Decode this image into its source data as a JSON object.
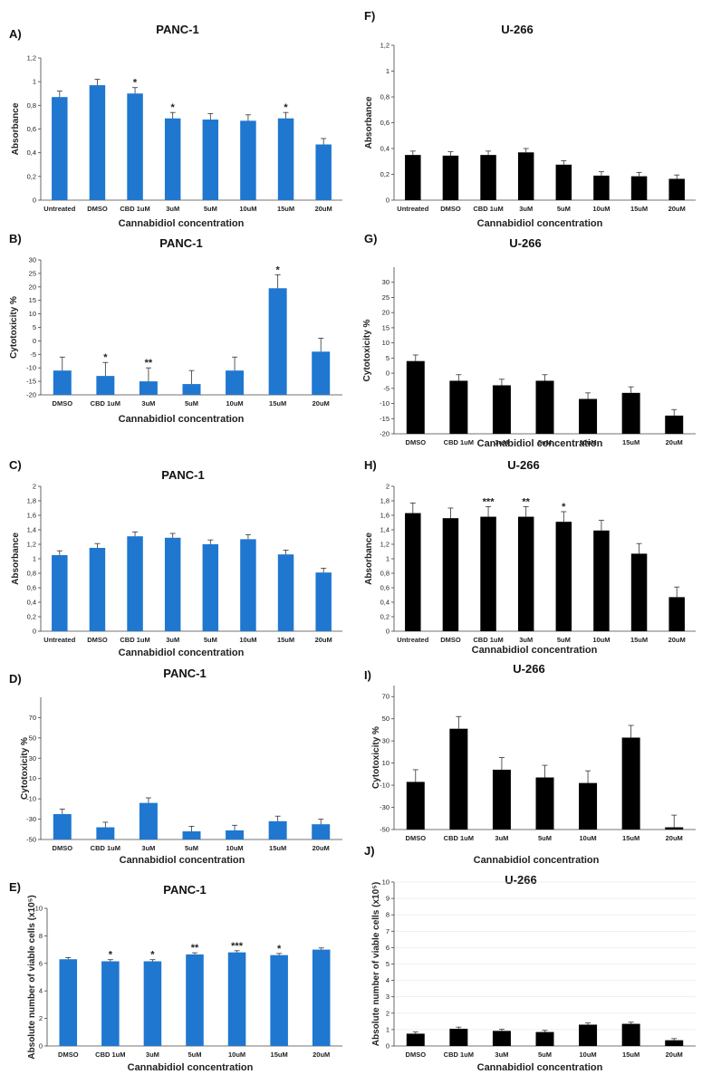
{
  "chart_data": [
    {
      "panel": "A)",
      "title": "PANC-1",
      "type": "bar",
      "color": "#1f77d0",
      "xlabel": "Cannabidiol  concentration",
      "ylabel": "Absorbance",
      "ylim": [
        0,
        1.2
      ],
      "yticks": [
        0,
        0.2,
        0.4,
        0.6,
        0.8,
        1,
        1.2
      ],
      "ytick_labels": [
        "0",
        "0,2",
        "0,4",
        "0,6",
        "0,8",
        "1",
        "1,2"
      ],
      "categories": [
        "Untreated",
        "DMSO",
        "CBD 1uM",
        "3uM",
        "5uM",
        "10uM",
        "15uM",
        "20uM"
      ],
      "values": [
        0.87,
        0.97,
        0.9,
        0.69,
        0.68,
        0.67,
        0.69,
        0.47
      ],
      "errors": [
        0.05,
        0.05,
        0.05,
        0.05,
        0.05,
        0.05,
        0.05,
        0.05
      ],
      "annotations": [
        "",
        "",
        "*",
        "*",
        "",
        "",
        "*",
        ""
      ]
    },
    {
      "panel": "B)",
      "title": "PANC-1",
      "type": "bar",
      "color": "#1f77d0",
      "xlabel": "Cannabidiol  concentration",
      "ylabel": "Cytotoxicity %",
      "ylim": [
        -20,
        30
      ],
      "yticks": [
        -20,
        -15,
        -10,
        -5,
        0,
        5,
        10,
        15,
        20,
        25,
        30
      ],
      "ytick_labels": [
        "-20",
        "-15",
        "-10",
        "-5",
        "0",
        "5",
        "10",
        "15",
        "20",
        "25",
        "30"
      ],
      "categories": [
        "DMSO",
        "CBD 1uM",
        "3uM",
        "5uM",
        "10uM",
        "15uM",
        "20uM"
      ],
      "values": [
        -11,
        -13,
        -15,
        -16,
        -11,
        19.5,
        -4
      ],
      "errors": [
        5,
        5,
        5,
        5,
        5,
        5,
        5
      ],
      "annotations": [
        "",
        "*",
        "**",
        "",
        "",
        "*",
        ""
      ]
    },
    {
      "panel": "C)",
      "title": "PANC-1",
      "type": "bar",
      "color": "#1f77d0",
      "xlabel": "Cannabidiol  concentration",
      "ylabel": "Absorbance",
      "ylim": [
        0,
        2
      ],
      "yticks": [
        0,
        0.2,
        0.4,
        0.6,
        0.8,
        1,
        1.2,
        1.4,
        1.6,
        1.8,
        2
      ],
      "ytick_labels": [
        "0",
        "0,2",
        "0,4",
        "0,6",
        "0,8",
        "1",
        "1,2",
        "1,4",
        "1,6",
        "1,8",
        "2"
      ],
      "categories": [
        "Untreated",
        "DMSO",
        "CBD 1uM",
        "3uM",
        "5uM",
        "10uM",
        "15uM",
        "20uM"
      ],
      "values": [
        1.05,
        1.15,
        1.31,
        1.29,
        1.2,
        1.27,
        1.06,
        0.81
      ],
      "errors": [
        0.06,
        0.06,
        0.06,
        0.06,
        0.06,
        0.06,
        0.06,
        0.06
      ],
      "annotations": [
        "",
        "",
        "",
        "",
        "",
        "",
        "",
        ""
      ]
    },
    {
      "panel": "D)",
      "title": "PANC-1",
      "type": "bar",
      "color": "#1f77d0",
      "xlabel": "Cannabidiol  concentration",
      "ylabel": "Cytotoxicity %",
      "ylim": [
        -50,
        90
      ],
      "yticks": [
        -50,
        -30,
        -10,
        10,
        30,
        50,
        70
      ],
      "ytick_labels": [
        "-50",
        "-30",
        "-10",
        "10",
        "30",
        "50",
        "70"
      ],
      "categories": [
        "DMSO",
        "CBD 1uM",
        "3uM",
        "5uM",
        "10uM",
        "15uM",
        "20uM"
      ],
      "values": [
        -25,
        -38,
        -14,
        -42,
        -41,
        -32,
        -35
      ],
      "errors": [
        5,
        5,
        5,
        5,
        5,
        5,
        5
      ],
      "annotations": [
        "",
        "",
        "",
        "",
        "",
        "",
        ""
      ]
    },
    {
      "panel": "E)",
      "title": "PANC-1",
      "type": "bar",
      "color": "#1f77d0",
      "xlabel": "Cannabidiol  concentration",
      "ylabel": "Absolute number of viable cells (x10⁵)",
      "ylim": [
        0,
        10
      ],
      "yticks": [
        0,
        2,
        4,
        6,
        8,
        10
      ],
      "ytick_labels": [
        "0",
        "2",
        "4",
        "6",
        "8",
        "10"
      ],
      "categories": [
        "DMSO",
        "CBD 1uM",
        "3uM",
        "5uM",
        "10uM",
        "15uM",
        "20uM"
      ],
      "values": [
        6.3,
        6.15,
        6.15,
        6.65,
        6.8,
        6.6,
        7.0
      ],
      "errors": [
        0.12,
        0.12,
        0.12,
        0.12,
        0.12,
        0.12,
        0.12
      ],
      "annotations": [
        "",
        "*",
        "*",
        "**",
        "***",
        "*",
        ""
      ]
    },
    {
      "panel": "F)",
      "title": "U-266",
      "type": "bar",
      "color": "#000000",
      "xlabel": "Cannabidiol  concentration",
      "ylabel": "Absorbance",
      "ylim": [
        0,
        1.2
      ],
      "yticks": [
        0,
        0.2,
        0.4,
        0.6,
        0.8,
        1,
        1.2
      ],
      "ytick_labels": [
        "0",
        "0,2",
        "0,4",
        "0,6",
        "0,8",
        "1",
        "1,2"
      ],
      "categories": [
        "Untreated",
        "DMSO",
        "CBD 1uM",
        "3uM",
        "5uM",
        "10uM",
        "15uM",
        "20uM"
      ],
      "values": [
        0.35,
        0.345,
        0.35,
        0.37,
        0.275,
        0.19,
        0.185,
        0.165
      ],
      "errors": [
        0.03,
        0.03,
        0.03,
        0.03,
        0.03,
        0.03,
        0.03,
        0.03
      ],
      "annotations": [
        "",
        "",
        "",
        "",
        "",
        "",
        "",
        ""
      ]
    },
    {
      "panel": "G)",
      "title": "U-266",
      "type": "bar",
      "color": "#000000",
      "xlabel": "Cannabidiol  concentration",
      "ylabel": "Cytotoxicity %",
      "ylim": [
        -20,
        35
      ],
      "yticks": [
        -20,
        -15,
        -10,
        -5,
        0,
        5,
        10,
        15,
        20,
        25,
        30
      ],
      "ytick_labels": [
        "-20",
        "-15",
        "-10",
        "-5",
        "0",
        "5",
        "10",
        "15",
        "20",
        "25",
        "30"
      ],
      "categories": [
        "DMSO",
        "CBD 1uM",
        "3uM",
        "5uM",
        "10uM",
        "15uM",
        "20uM"
      ],
      "values": [
        4,
        -2.5,
        -4,
        -2.5,
        -8.5,
        -6.5,
        -14
      ],
      "errors": [
        2,
        2,
        2,
        2,
        2,
        2,
        2
      ],
      "annotations": [
        "",
        "",
        "",
        "",
        "",
        "",
        ""
      ]
    },
    {
      "panel": "H)",
      "title": "U-266",
      "type": "bar",
      "color": "#000000",
      "xlabel": "Cannabidiol  concentration",
      "ylabel": "Absorbance",
      "ylim": [
        0,
        2
      ],
      "yticks": [
        0,
        0.2,
        0.4,
        0.6,
        0.8,
        1,
        1.2,
        1.4,
        1.6,
        1.8,
        2
      ],
      "ytick_labels": [
        "0",
        "0,2",
        "0,4",
        "0,6",
        "0,8",
        "1",
        "1,2",
        "1,4",
        "1,6",
        "1,8",
        "2"
      ],
      "categories": [
        "Untreated",
        "DMSO",
        "CBD 1uM",
        "3uM",
        "5uM",
        "10uM",
        "15uM",
        "20uM"
      ],
      "values": [
        1.63,
        1.56,
        1.58,
        1.58,
        1.51,
        1.39,
        1.07,
        0.47
      ],
      "errors": [
        0.14,
        0.14,
        0.14,
        0.14,
        0.14,
        0.14,
        0.14,
        0.14
      ],
      "annotations": [
        "",
        "",
        "***",
        "**",
        "*",
        "",
        "",
        ""
      ]
    },
    {
      "panel": "I)",
      "title": "U-266",
      "type": "bar",
      "color": "#000000",
      "xlabel": "Cannabidiol  concentration",
      "ylabel": "Cytotoxicity %",
      "ylim": [
        -50,
        80
      ],
      "yticks": [
        -50,
        -30,
        -10,
        10,
        30,
        50,
        70
      ],
      "ytick_labels": [
        "-50",
        "-30",
        "-10",
        "10",
        "30",
        "50",
        "70"
      ],
      "categories": [
        "DMSO",
        "CBD 1uM",
        "3uM",
        "5uM",
        "10uM",
        "15uM",
        "20uM"
      ],
      "values": [
        -7,
        41,
        4,
        -3,
        -8,
        33,
        -48
      ],
      "errors": [
        11,
        11,
        11,
        11,
        11,
        11,
        11
      ],
      "annotations": [
        "",
        "",
        "",
        "",
        "",
        "",
        ""
      ]
    },
    {
      "panel": "J)",
      "title": "U-266",
      "type": "bar",
      "color": "#000000",
      "xlabel": "Cannabidiol  concentration",
      "ylabel": "Absolute number of viable cells (x10⁵)",
      "ylim": [
        0,
        10
      ],
      "yticks": [
        0,
        1,
        2,
        3,
        4,
        5,
        6,
        7,
        8,
        9,
        10
      ],
      "ytick_labels": [
        "0",
        "1",
        "2",
        "3",
        "4",
        "5",
        "6",
        "7",
        "8",
        "9",
        "10"
      ],
      "categories": [
        "DMSO",
        "CBD 1uM",
        "3uM",
        "5uM",
        "10uM",
        "15uM",
        "20uM"
      ],
      "values": [
        0.75,
        1.05,
        0.92,
        0.85,
        1.3,
        1.35,
        0.35
      ],
      "errors": [
        0.1,
        0.1,
        0.1,
        0.1,
        0.1,
        0.1,
        0.1
      ],
      "annotations": [
        "",
        "",
        "",
        "",
        "",
        "",
        ""
      ]
    }
  ]
}
